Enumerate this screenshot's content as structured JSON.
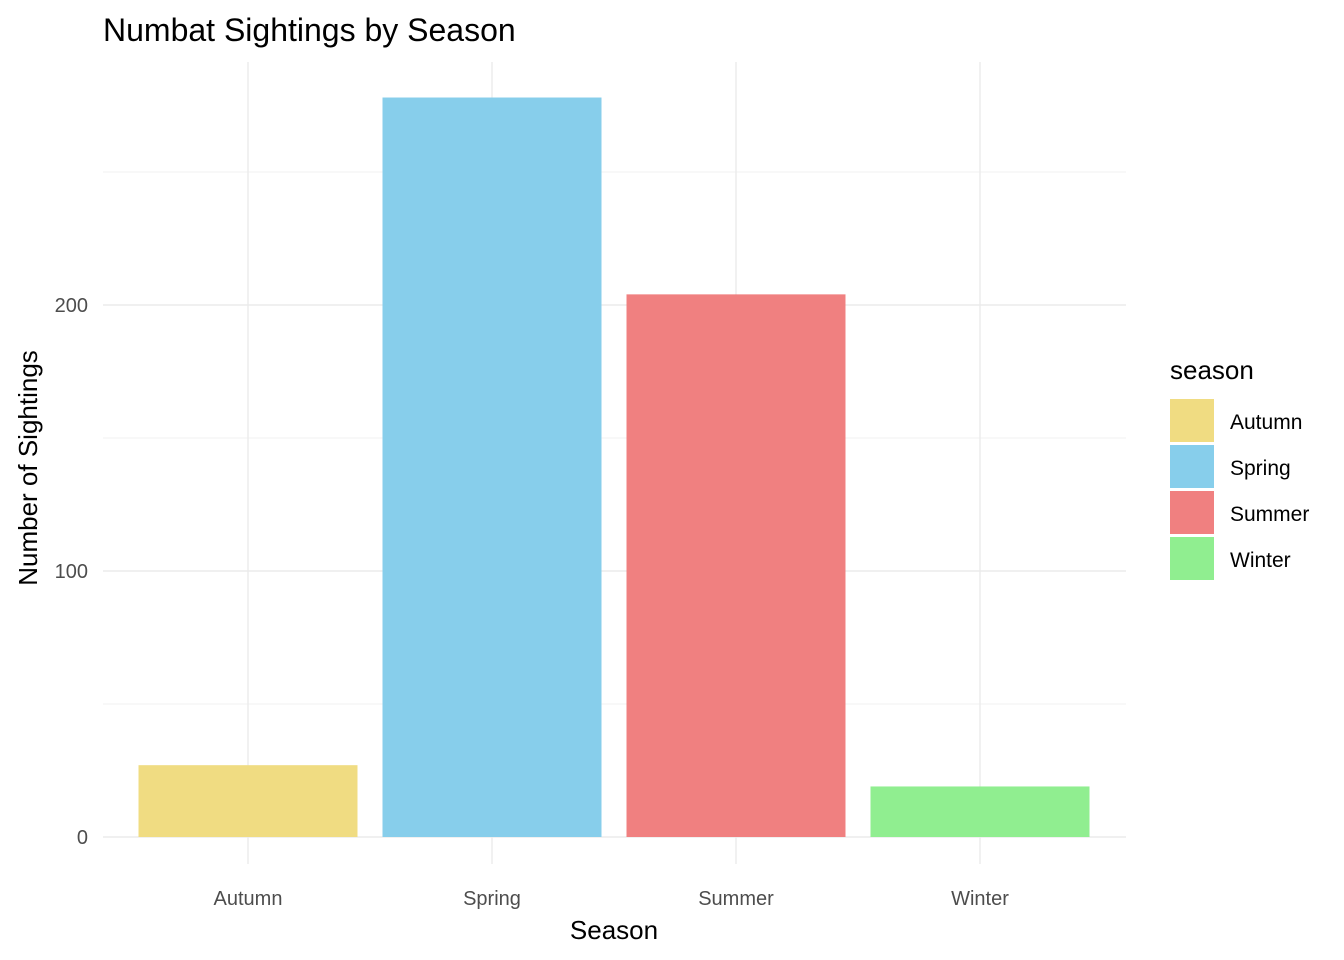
{
  "chart_data": {
    "type": "bar",
    "title": "Numbat Sightings by Season",
    "xlabel": "Season",
    "ylabel": "Number of Sightings",
    "categories": [
      "Autumn",
      "Spring",
      "Summer",
      "Winter"
    ],
    "values": [
      27,
      278,
      204,
      19
    ],
    "colors": [
      "#F0DC82",
      "#87CEEB",
      "#F08080",
      "#90EE90"
    ],
    "ylim": [
      0,
      290
    ],
    "yticks": [
      0,
      100,
      200
    ],
    "yticks_minor": [
      50,
      150,
      250
    ],
    "grid": true,
    "legend": {
      "title": "season",
      "position": "right",
      "entries": [
        "Autumn",
        "Spring",
        "Summer",
        "Winter"
      ]
    }
  }
}
